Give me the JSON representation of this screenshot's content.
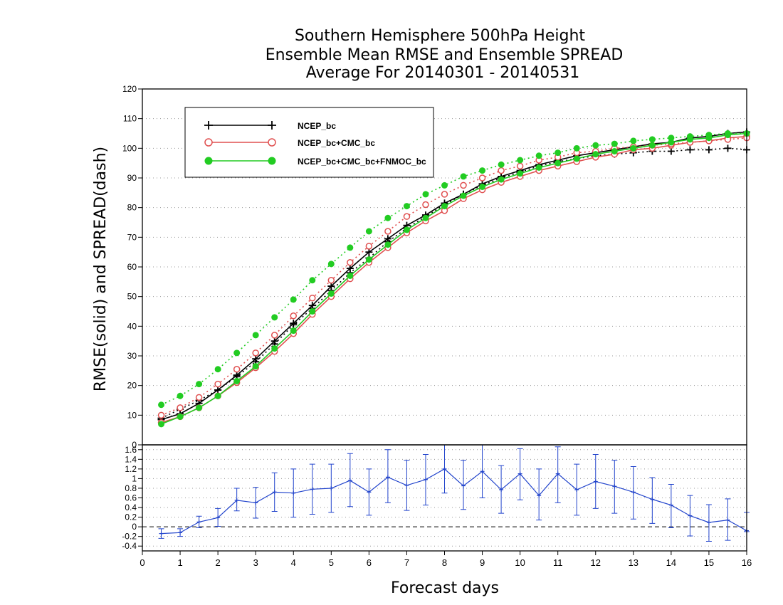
{
  "chart_data": [
    {
      "type": "line",
      "title": [
        "Southern Hemisphere 500hPa Height",
        "Ensemble Mean RMSE and Ensemble SPREAD",
        "Average For 20140301 - 20140531"
      ],
      "ylabel": "RMSE(solid) and SPREAD(dash)",
      "ylim": [
        0,
        120
      ],
      "yticks": [
        0,
        10,
        20,
        30,
        40,
        50,
        60,
        70,
        80,
        90,
        100,
        110,
        120
      ],
      "x": [
        0.5,
        1,
        1.5,
        2,
        2.5,
        3,
        3.5,
        4,
        4.5,
        5,
        5.5,
        6,
        6.5,
        7,
        7.5,
        8,
        8.5,
        9,
        9.5,
        10,
        10.5,
        11,
        11.5,
        12,
        12.5,
        13,
        13.5,
        14,
        14.5,
        15,
        15.5,
        16
      ],
      "legend_position": "top-left",
      "grid": true,
      "series": [
        {
          "name": "NCEP_bc",
          "color": "#000000",
          "marker": "plus",
          "rmse": [
            8.5,
            10.5,
            14,
            18.5,
            23.5,
            29,
            35,
            41,
            47,
            53.5,
            59.5,
            65,
            69.5,
            74,
            77.5,
            81.5,
            84.5,
            88,
            90.5,
            92.5,
            94.5,
            96,
            97.5,
            98.5,
            99.5,
            100.5,
            101.5,
            102,
            103.5,
            104,
            105,
            105.5
          ],
          "spread": [
            9,
            12,
            15,
            18.5,
            23,
            28,
            34,
            40.5,
            46,
            52,
            58,
            63,
            68.5,
            73,
            77,
            81,
            84.5,
            87.5,
            90,
            92,
            94,
            95.5,
            96.5,
            97.5,
            98,
            98.5,
            99,
            99,
            99.5,
            99.5,
            100,
            99.5
          ]
        },
        {
          "name": "NCEP_bc+CMC_bc",
          "color": "#e05050",
          "marker": "open-circle",
          "rmse": [
            7.5,
            9.5,
            12.5,
            16.5,
            21,
            26,
            31.5,
            37.5,
            44,
            50,
            56,
            61.5,
            66.5,
            71.5,
            75.5,
            79,
            83,
            86,
            88.5,
            90.5,
            92.5,
            94,
            95.5,
            97,
            98,
            99.5,
            100,
            101,
            102,
            102.5,
            103.5,
            104
          ],
          "spread": [
            10,
            12.5,
            16,
            20.5,
            25.5,
            31,
            37,
            43.5,
            49.5,
            55.5,
            61.5,
            67,
            72,
            77,
            81,
            84.5,
            87.5,
            90,
            92.5,
            94,
            96,
            97,
            98.5,
            99,
            100,
            100.5,
            101,
            101.5,
            102,
            102.5,
            103,
            103.5
          ]
        },
        {
          "name": "NCEP_bc+CMC_bc+FNMOC_bc",
          "color": "#22cc22",
          "marker": "filled-circle",
          "rmse": [
            7,
            9.5,
            12.5,
            16.5,
            21.5,
            26.5,
            32.5,
            38.5,
            45,
            51,
            57,
            62.5,
            67.5,
            72.5,
            76.5,
            80.5,
            84,
            87,
            89.5,
            91.5,
            93.5,
            95,
            96.5,
            98,
            99,
            100,
            101,
            102,
            103,
            103.5,
            104.5,
            105
          ],
          "spread": [
            13.5,
            16.5,
            20.5,
            25.5,
            31,
            37,
            43,
            49,
            55.5,
            61,
            66.5,
            72,
            76.5,
            80.5,
            84.5,
            87.5,
            90.5,
            92.5,
            94.5,
            96,
            97.5,
            98.5,
            100,
            101,
            101.5,
            102.5,
            103,
            103.5,
            104,
            104.5,
            105,
            105
          ]
        }
      ]
    },
    {
      "type": "line",
      "xlabel": "Forecast days",
      "xlim": [
        0,
        16
      ],
      "xticks": [
        0,
        1,
        2,
        3,
        4,
        5,
        6,
        7,
        8,
        9,
        10,
        11,
        12,
        13,
        14,
        15,
        16
      ],
      "ylim": [
        -0.5,
        1.7
      ],
      "yticks": [
        -0.4,
        -0.2,
        0,
        0.2,
        0.4,
        0.6,
        0.8,
        1,
        1.2,
        1.4,
        1.6
      ],
      "x": [
        0.5,
        1,
        1.5,
        2,
        2.5,
        3,
        3.5,
        4,
        4.5,
        5,
        5.5,
        6,
        6.5,
        7,
        7.5,
        8,
        8.5,
        9,
        9.5,
        10,
        10.5,
        11,
        11.5,
        12,
        12.5,
        13,
        13.5,
        14,
        14.5,
        15,
        15.5,
        16
      ],
      "series": [
        {
          "color": "#2244cc",
          "marker": "plus-with-errorbar",
          "values": [
            -0.14,
            -0.12,
            0.1,
            0.19,
            0.55,
            0.5,
            0.72,
            0.7,
            0.78,
            0.8,
            0.96,
            0.72,
            1.03,
            0.86,
            0.98,
            1.2,
            0.85,
            1.15,
            0.77,
            1.1,
            0.65,
            1.1,
            0.77,
            0.94,
            0.84,
            0.72,
            0.57,
            0.45,
            0.23,
            0.09,
            0.14,
            -0.08
          ],
          "error_low": [
            -0.24,
            -0.2,
            -0.02,
            0.01,
            0.33,
            0.18,
            0.32,
            0.2,
            0.26,
            0.3,
            0.42,
            0.24,
            0.5,
            0.34,
            0.45,
            0.7,
            0.36,
            0.6,
            0.28,
            0.56,
            0.14,
            0.5,
            0.24,
            0.38,
            0.28,
            0.16,
            0.07,
            -0.02,
            -0.19,
            -0.3,
            -0.28,
            -0.1
          ],
          "error_high": [
            -0.04,
            -0.04,
            0.22,
            0.38,
            0.8,
            0.82,
            1.12,
            1.2,
            1.3,
            1.3,
            1.52,
            1.2,
            1.6,
            1.38,
            1.5,
            1.75,
            1.38,
            1.72,
            1.27,
            1.62,
            1.2,
            1.66,
            1.3,
            1.5,
            1.38,
            1.25,
            1.02,
            0.88,
            0.65,
            0.46,
            0.58,
            0.3
          ]
        },
        {
          "color": "#000000",
          "style": "dashed",
          "reference_y": 0
        }
      ]
    }
  ]
}
